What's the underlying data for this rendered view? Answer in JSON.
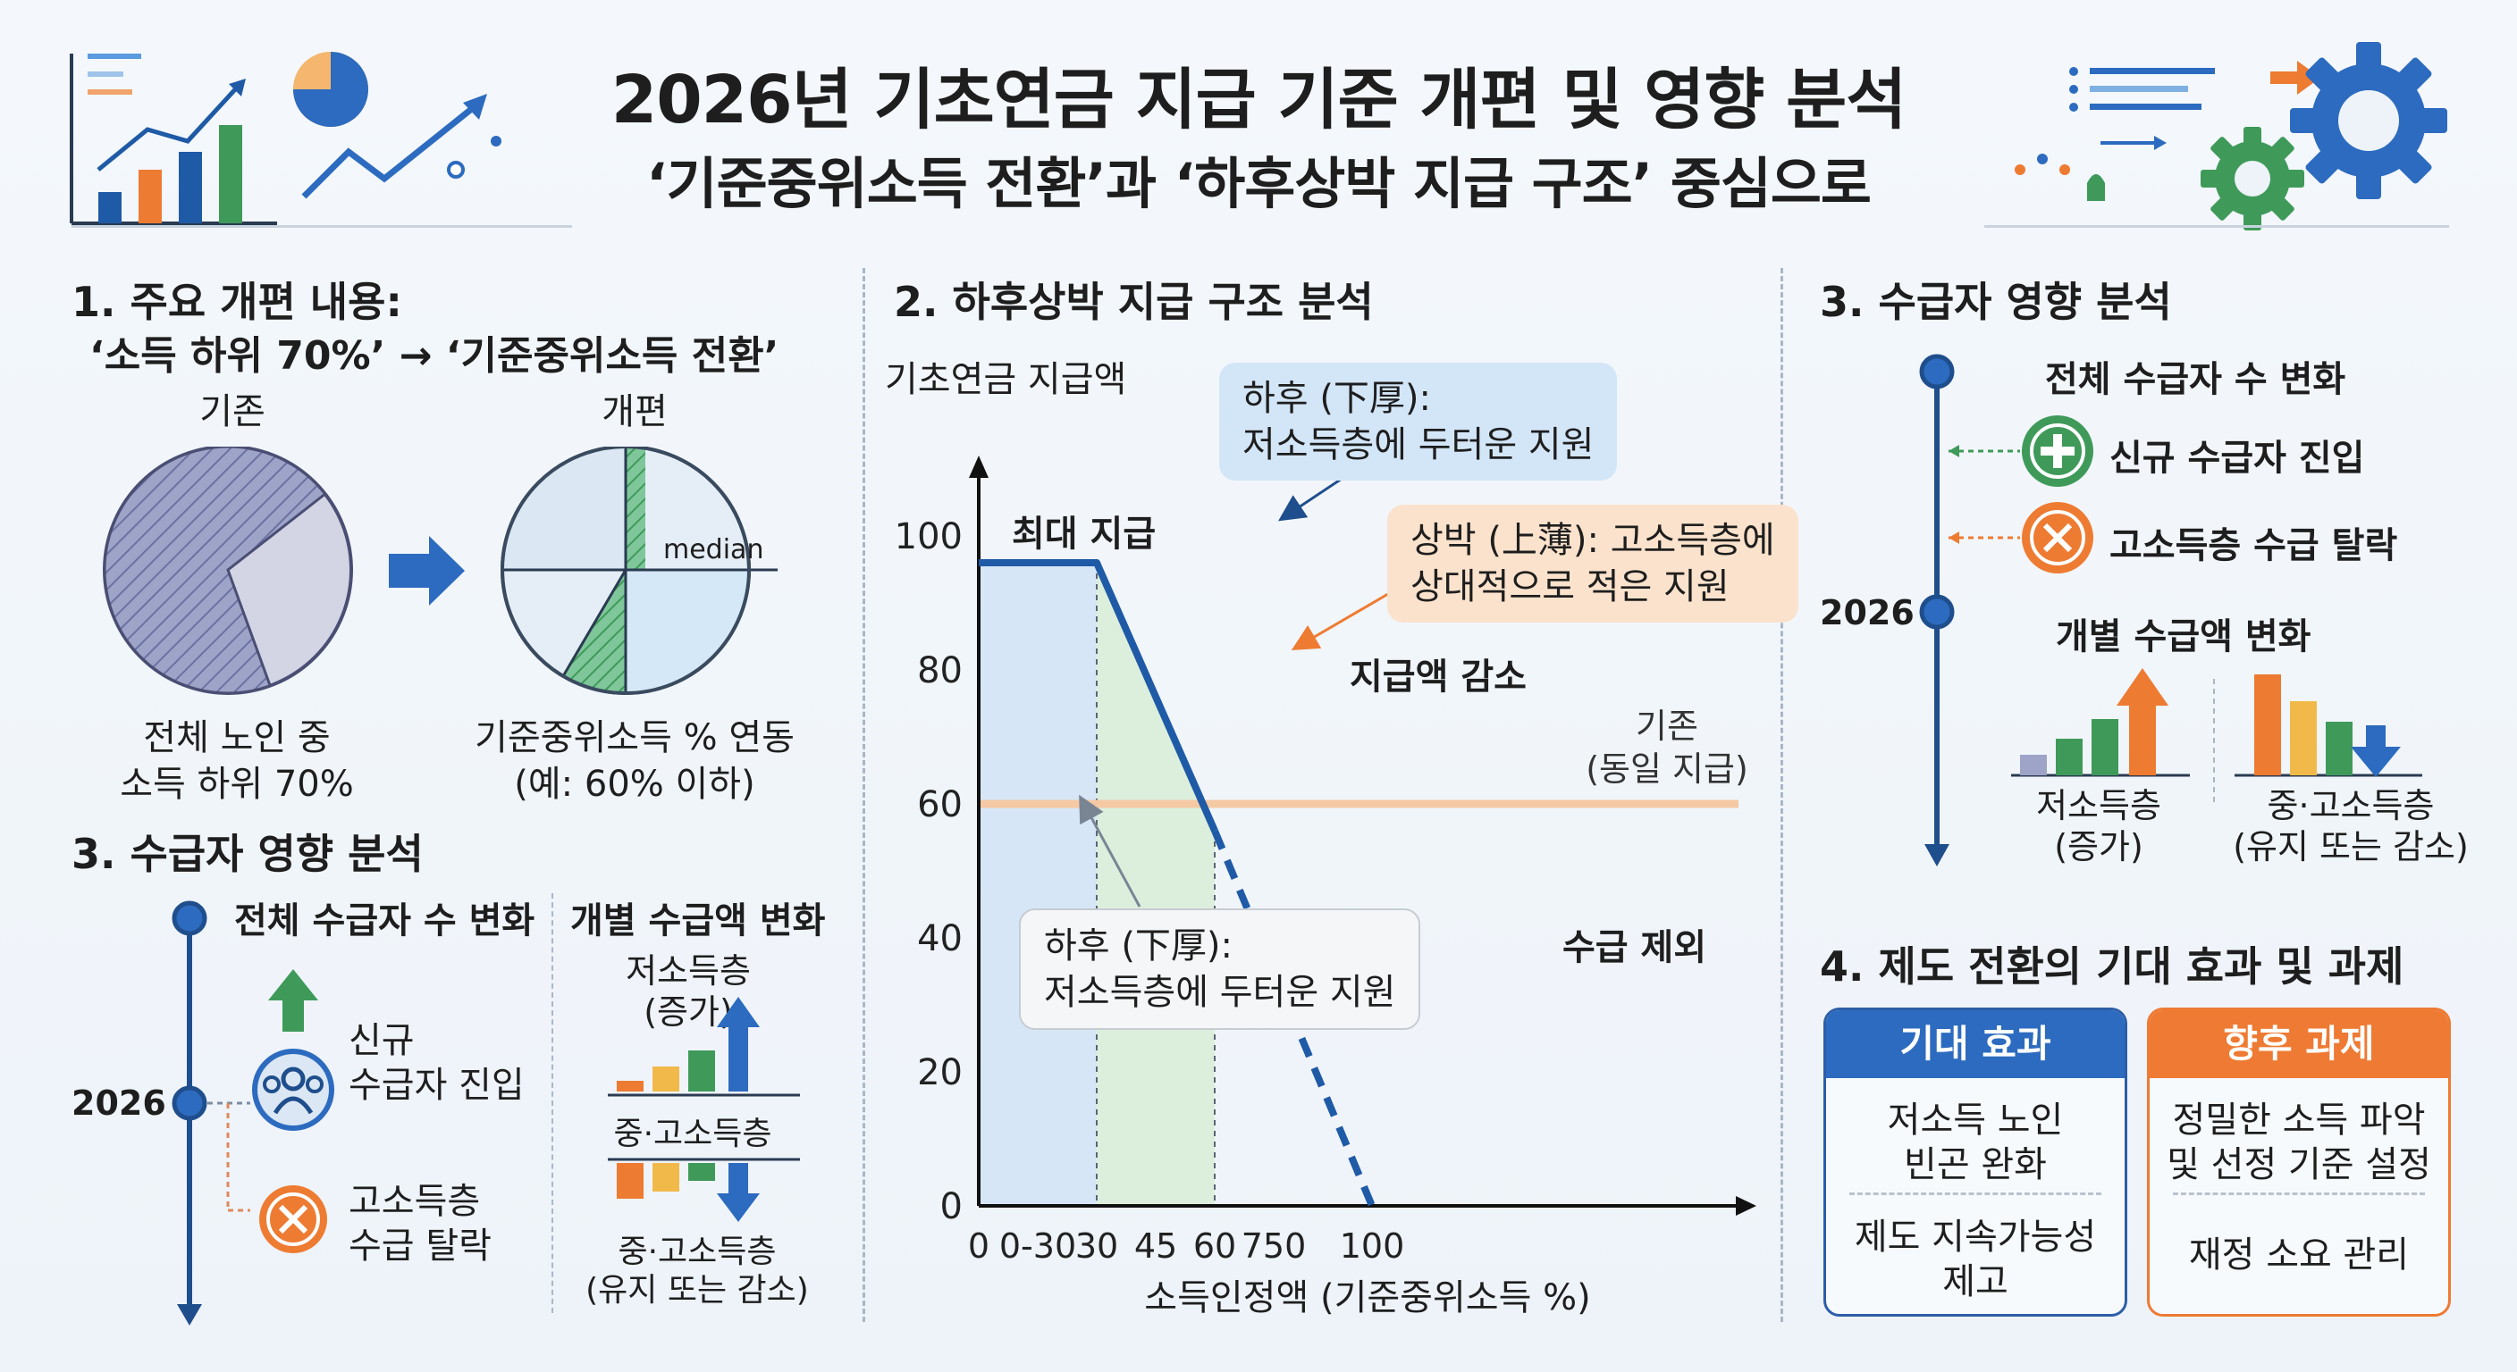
{
  "header": {
    "title": "2026년 기초연금 지급 기준 개편 및 영향 분석",
    "subtitle": "‘기준중위소득 전환’과 ‘하후상박 지급 구조’ 중심으로"
  },
  "section1": {
    "heading": "1. 주요 개편 내용:",
    "subheading": "‘소득 하위 70%’ → ‘기준중위소득 전환’",
    "before_label": "기존",
    "after_label": "개편",
    "median_label": "median",
    "before_caption_1": "전체 노인 중",
    "before_caption_2": "소득 하위 70%",
    "after_caption_1": "기준중위소득 % 연동",
    "after_caption_2": "(예: 60% 이하)",
    "before_pie_share": 0.7
  },
  "section3_left": {
    "heading": "3. 수급자 영향 분석",
    "count_change": "전체 수급자 수 변화",
    "amount_change": "개별 수급액 변화",
    "year": "2026",
    "new_entry_1": "신규",
    "new_entry_2": "수급자 진입",
    "drop_1": "고소득층",
    "drop_2": "수급 탈락",
    "low_income_1": "저소득층",
    "low_income_2": "(증가)",
    "mid_high": "중·고소득층",
    "mid_high_2": "중·고소득층",
    "mid_high_3": "(유지 또는 감소)"
  },
  "section2": {
    "heading": "2. 하후상박 지급 구조 분석",
    "max_label": "최대 지급",
    "decrease_label": "지급액 감소",
    "exclude_label": "수급 제외",
    "baseline_label_1": "기존",
    "baseline_label_2": "(동일 지급)",
    "callout_top_1": "하후 (下厚):",
    "callout_top_2": "저소득층에 두터운 지원",
    "callout_right_1": "상박 (上薄): 고소득층에",
    "callout_right_2": "상대적으로 적은 지원",
    "callout_bottom_1": "하후 (下厚):",
    "callout_bottom_2": "저소득층에 두터운 지원"
  },
  "chart_data": {
    "type": "line",
    "title": "",
    "ylabel": "기초연금 지급액",
    "xlabel": "소득인정액 (기준중위소득 %)",
    "x_ticks": [
      "0",
      "0-30",
      "30",
      "45",
      "60",
      "750",
      "100"
    ],
    "y_ticks": [
      0,
      20,
      40,
      60,
      80,
      100
    ],
    "ylim": [
      0,
      110
    ],
    "series": [
      {
        "style": "solid",
        "points": [
          [
            0,
            96
          ],
          [
            30,
            96
          ],
          [
            60,
            56
          ]
        ]
      },
      {
        "style": "dashed",
        "points": [
          [
            60,
            56
          ],
          [
            100,
            0
          ]
        ]
      }
    ],
    "baseline": 60,
    "colors": {
      "line": "#1f5aa6",
      "baseline": "#f5c9a3",
      "low_zone": "#d6e6f6",
      "mid_zone": "#dcefdc"
    }
  },
  "section3_right": {
    "heading": "3. 수급자 영향 분석",
    "count_change": "전체 수급자 수 변화",
    "new_entry": "신규 수급자 진입",
    "drop": "고소득층 수급 탈락",
    "year": "2026",
    "amount_change": "개별 수급액 변화",
    "low_income_1": "저소득층",
    "low_income_2": "(증가)",
    "mid_high_1": "중·고소득층",
    "mid_high_2": "(유지 또는 감소)"
  },
  "section4": {
    "heading": "4. 제도 전환의 기대 효과 및 과제",
    "effects_title": "기대 효과",
    "effects": [
      {
        "line1": "저소득 노인",
        "line2": "빈곤 완화"
      },
      {
        "line1": "제도 지속가능성",
        "line2": "제고"
      }
    ],
    "tasks_title": "향후 과제",
    "tasks": [
      {
        "line1": "정밀한 소득 파악",
        "line2": "및 선정 기준 설정"
      },
      {
        "line1": "재정 소요 관리",
        "line2": ""
      }
    ]
  },
  "icons": [
    "bar-chart-icon",
    "pie-chart-icon",
    "trend-arrow-icon",
    "gear-icon",
    "plus-icon",
    "x-icon",
    "people-icon",
    "arrow-right-icon"
  ],
  "colors": {
    "navy": "#1f4e8c",
    "green": "#3f9a5a",
    "orange": "#ee7b32",
    "blue_head": "#2c6bbf",
    "orange_head": "#ee7a33"
  }
}
